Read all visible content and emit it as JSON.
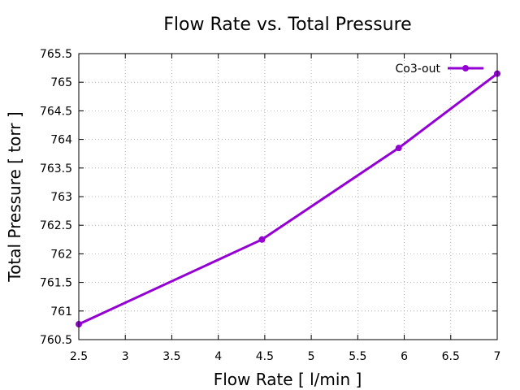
{
  "chart_data": {
    "type": "line",
    "title": "Flow Rate vs. Total Pressure",
    "xlabel": "Flow Rate [ l/min ]",
    "ylabel": "Total Pressure [ torr ]",
    "xlim": [
      2.5,
      7
    ],
    "ylim": [
      760.5,
      765.5
    ],
    "xticks": [
      2.5,
      3,
      3.5,
      4,
      4.5,
      5,
      5.5,
      6,
      6.5,
      7
    ],
    "xtick_labels": [
      "2.5",
      "3",
      "3.5",
      "4",
      "4.5",
      "5",
      "5.5",
      "6",
      "6.5",
      "7"
    ],
    "yticks": [
      760.5,
      761,
      761.5,
      762,
      762.5,
      763,
      763.5,
      764,
      764.5,
      765,
      765.5
    ],
    "ytick_labels": [
      "760.5",
      "761",
      "761.5",
      "762",
      "762.5",
      "763",
      "763.5",
      "764",
      "764.5",
      "765",
      "765.5"
    ],
    "grid": true,
    "legend_position": "top-right",
    "series": [
      {
        "name": "Co3-out",
        "color": "#9400d3",
        "x": [
          2.5,
          4.47,
          5.94,
          7.0
        ],
        "y": [
          760.77,
          762.25,
          763.85,
          765.15
        ]
      }
    ]
  }
}
